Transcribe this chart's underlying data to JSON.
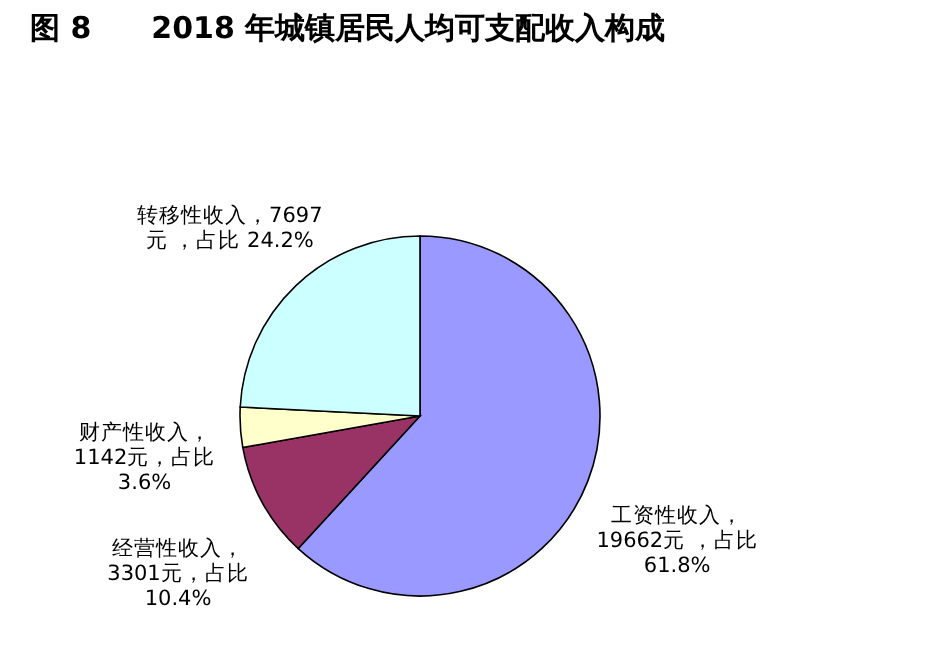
{
  "chart_data": {
    "type": "pie",
    "title": "图 8　　2018 年城镇居民人均可支配收入构成",
    "categories": [
      "工资性收入",
      "经营性收入",
      "财产性收入",
      "转移性收入"
    ],
    "values": [
      19662,
      3301,
      1142,
      7697
    ],
    "colors": [
      "#9999ff",
      "#993366",
      "#ffffcc",
      "#ccffff"
    ],
    "value_labels": [
      "，\n19662元 ，占比\n61.8%",
      "，\n3301元，占比\n10.4%",
      "，\n1142元，占比\n3.6%",
      "，7697\n元 ，占比 24.2%"
    ]
  }
}
